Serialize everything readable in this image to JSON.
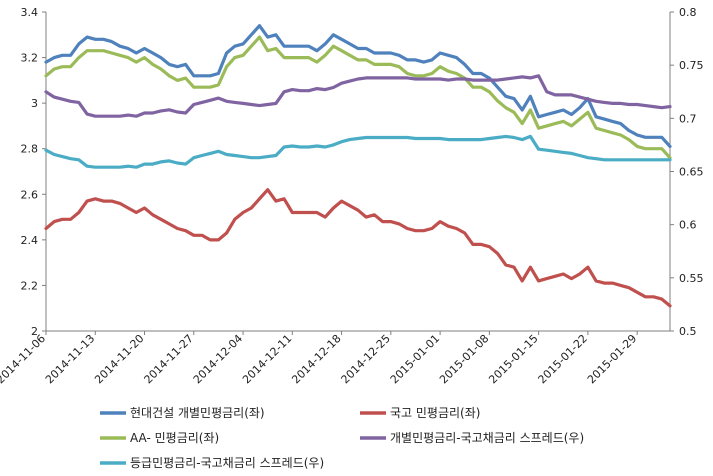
{
  "chart_data": {
    "type": "line",
    "x_tick_labels": [
      "2014-11-06",
      "2014-11-13",
      "2014-11-20",
      "2014-11-27",
      "2014-12-04",
      "2014-12-11",
      "2014-12-18",
      "2014-12-25",
      "2015-01-01",
      "2015-01-08",
      "2015-01-15",
      "2015-01-22",
      "2015-01-29"
    ],
    "y_left": {
      "ylim": [
        2,
        3.4
      ],
      "ticks": [
        "2",
        "2.2",
        "2.4",
        "2.6",
        "2.8",
        "3",
        "3.2",
        "3.4"
      ]
    },
    "y_right": {
      "ylim": [
        0.5,
        0.8
      ],
      "ticks": [
        "0.5",
        "0.55",
        "0.6",
        "0.65",
        "0.7",
        "0.75",
        "0.8"
      ]
    },
    "legend_position": "bottom",
    "series": [
      {
        "name": "현대건설 개별민평금리(좌)",
        "axis": "left",
        "color": "#4f81bd",
        "values": [
          3.18,
          3.2,
          3.21,
          3.21,
          3.26,
          3.29,
          3.28,
          3.28,
          3.27,
          3.25,
          3.24,
          3.22,
          3.24,
          3.22,
          3.2,
          3.17,
          3.16,
          3.17,
          3.12,
          3.12,
          3.12,
          3.13,
          3.22,
          3.25,
          3.26,
          3.3,
          3.34,
          3.29,
          3.3,
          3.25,
          3.25,
          3.25,
          3.25,
          3.23,
          3.26,
          3.3,
          3.28,
          3.26,
          3.24,
          3.24,
          3.22,
          3.22,
          3.22,
          3.21,
          3.19,
          3.19,
          3.18,
          3.19,
          3.22,
          3.21,
          3.2,
          3.17,
          3.13,
          3.13,
          3.11,
          3.07,
          3.03,
          3.02,
          2.97,
          3.03,
          2.94,
          2.95,
          2.96,
          2.97,
          2.95,
          2.98,
          3.02,
          2.94,
          2.93,
          2.92,
          2.91,
          2.88,
          2.86,
          2.85,
          2.85,
          2.85,
          2.81
        ]
      },
      {
        "name": "국고 민평금리(좌)",
        "axis": "left",
        "color": "#c0504d",
        "values": [
          2.45,
          2.48,
          2.49,
          2.49,
          2.52,
          2.57,
          2.58,
          2.57,
          2.57,
          2.56,
          2.54,
          2.52,
          2.54,
          2.51,
          2.49,
          2.47,
          2.45,
          2.44,
          2.42,
          2.42,
          2.4,
          2.4,
          2.43,
          2.49,
          2.52,
          2.54,
          2.58,
          2.62,
          2.57,
          2.58,
          2.52,
          2.52,
          2.52,
          2.52,
          2.5,
          2.54,
          2.57,
          2.55,
          2.53,
          2.5,
          2.51,
          2.48,
          2.48,
          2.47,
          2.45,
          2.44,
          2.44,
          2.45,
          2.48,
          2.46,
          2.45,
          2.43,
          2.38,
          2.38,
          2.37,
          2.34,
          2.29,
          2.28,
          2.22,
          2.28,
          2.22,
          2.23,
          2.24,
          2.25,
          2.23,
          2.25,
          2.28,
          2.22,
          2.21,
          2.21,
          2.2,
          2.19,
          2.17,
          2.15,
          2.15,
          2.14,
          2.11
        ]
      },
      {
        "name": "AA- 민평금리(좌)",
        "axis": "left",
        "color": "#9bbb59",
        "values": [
          3.12,
          3.15,
          3.16,
          3.16,
          3.2,
          3.23,
          3.23,
          3.23,
          3.22,
          3.21,
          3.2,
          3.18,
          3.2,
          3.17,
          3.15,
          3.12,
          3.1,
          3.11,
          3.07,
          3.07,
          3.07,
          3.08,
          3.16,
          3.2,
          3.21,
          3.25,
          3.29,
          3.23,
          3.24,
          3.2,
          3.2,
          3.2,
          3.2,
          3.18,
          3.21,
          3.25,
          3.23,
          3.21,
          3.19,
          3.19,
          3.17,
          3.17,
          3.17,
          3.16,
          3.13,
          3.12,
          3.12,
          3.13,
          3.16,
          3.14,
          3.13,
          3.11,
          3.07,
          3.07,
          3.05,
          3.01,
          2.98,
          2.96,
          2.91,
          2.97,
          2.89,
          2.9,
          2.91,
          2.92,
          2.9,
          2.93,
          2.96,
          2.89,
          2.88,
          2.87,
          2.86,
          2.84,
          2.81,
          2.8,
          2.8,
          2.8,
          2.76
        ]
      },
      {
        "name": "개별민평금리-국고채금리 스프레드(우)",
        "axis": "right",
        "color": "#8064a2",
        "values": [
          0.725,
          0.72,
          0.718,
          0.716,
          0.715,
          0.704,
          0.702,
          0.702,
          0.702,
          0.702,
          0.703,
          0.702,
          0.705,
          0.705,
          0.707,
          0.708,
          0.706,
          0.705,
          0.713,
          0.715,
          0.717,
          0.719,
          0.716,
          0.715,
          0.714,
          0.713,
          0.712,
          0.713,
          0.714,
          0.725,
          0.727,
          0.726,
          0.726,
          0.728,
          0.727,
          0.729,
          0.733,
          0.735,
          0.737,
          0.738,
          0.738,
          0.738,
          0.738,
          0.738,
          0.738,
          0.737,
          0.737,
          0.737,
          0.737,
          0.736,
          0.737,
          0.737,
          0.736,
          0.736,
          0.736,
          0.736,
          0.737,
          0.738,
          0.739,
          0.738,
          0.74,
          0.725,
          0.722,
          0.722,
          0.722,
          0.72,
          0.718,
          0.716,
          0.715,
          0.714,
          0.714,
          0.713,
          0.713,
          0.712,
          0.711,
          0.71,
          0.711
        ]
      },
      {
        "name": "등급민평금리-국고채금리 스프레드(우)",
        "axis": "right",
        "color": "#4bacc6",
        "values": [
          0.67,
          0.666,
          0.664,
          0.662,
          0.661,
          0.655,
          0.654,
          0.654,
          0.654,
          0.654,
          0.655,
          0.654,
          0.657,
          0.657,
          0.659,
          0.66,
          0.658,
          0.657,
          0.663,
          0.665,
          0.667,
          0.669,
          0.666,
          0.665,
          0.664,
          0.663,
          0.663,
          0.664,
          0.665,
          0.673,
          0.674,
          0.673,
          0.673,
          0.674,
          0.673,
          0.675,
          0.678,
          0.68,
          0.681,
          0.682,
          0.682,
          0.682,
          0.682,
          0.682,
          0.682,
          0.681,
          0.681,
          0.681,
          0.681,
          0.68,
          0.68,
          0.68,
          0.68,
          0.68,
          0.681,
          0.682,
          0.683,
          0.682,
          0.68,
          0.683,
          0.671,
          0.67,
          0.669,
          0.668,
          0.667,
          0.665,
          0.663,
          0.662,
          0.661,
          0.661,
          0.661,
          0.661,
          0.661,
          0.661,
          0.661,
          0.661,
          0.661
        ]
      }
    ]
  }
}
